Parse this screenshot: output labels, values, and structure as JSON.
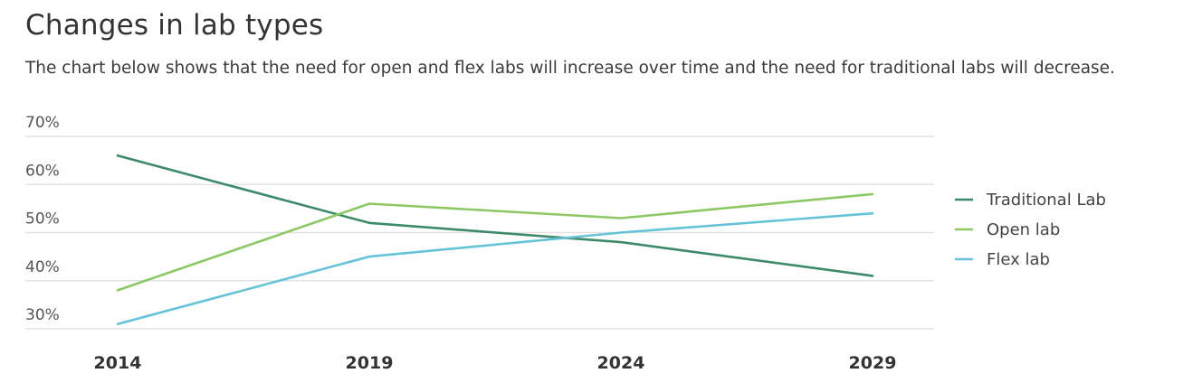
{
  "title": "Changes in lab types",
  "subtitle": "The chart below shows that the need for open and flex labs will increase over time and the need for traditional labs will decrease.",
  "chart_data": {
    "type": "line",
    "title": "Changes in lab types",
    "xlabel": "",
    "ylabel": "",
    "x": [
      "2014",
      "2019",
      "2024",
      "2029"
    ],
    "ylim": [
      30,
      70
    ],
    "yticks": [
      "30%",
      "40%",
      "50%",
      "60%",
      "70%"
    ],
    "grid": true,
    "legend_position": "right",
    "series": [
      {
        "name": "Traditional Lab",
        "color": "#3d8a6a",
        "values": [
          66,
          52,
          48,
          41
        ]
      },
      {
        "name": "Open lab",
        "color": "#8cc864",
        "values": [
          38,
          56,
          53,
          58
        ]
      },
      {
        "name": "Flex lab",
        "color": "#64c3d8",
        "values": [
          31,
          45,
          50,
          54
        ]
      }
    ]
  }
}
